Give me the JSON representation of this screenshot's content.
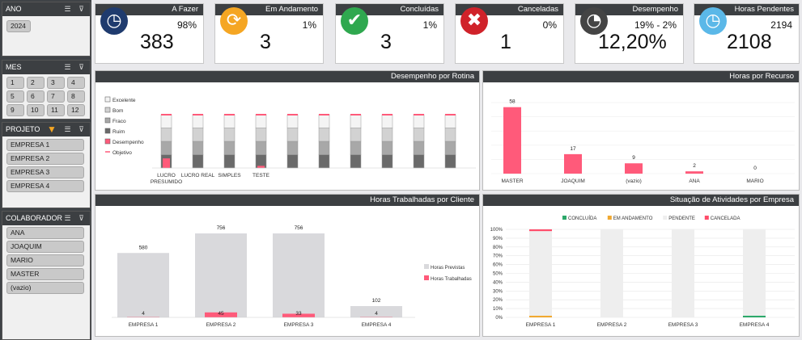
{
  "slicers": {
    "ano": {
      "title": "ANO",
      "items": [
        "2024"
      ]
    },
    "mes": {
      "title": "MES",
      "items": [
        "1",
        "2",
        "3",
        "4",
        "5",
        "6",
        "7",
        "8",
        "9",
        "10",
        "11",
        "12"
      ]
    },
    "projeto": {
      "title": "PROJETO",
      "items": [
        "EMPRESA 1",
        "EMPRESA 2",
        "EMPRESA 3",
        "EMPRESA 4"
      ]
    },
    "colaborador": {
      "title": "COLABORADOR",
      "items": [
        "ANA",
        "JOAQUIM",
        "MARIO",
        "MASTER",
        "(vazio)"
      ]
    }
  },
  "cards": [
    {
      "title": "A Fazer",
      "pct": "98%",
      "value": "383",
      "icon": "clock-alert-icon",
      "color": "#1f3b6e"
    },
    {
      "title": "Em Andamento",
      "pct": "1%",
      "value": "3",
      "icon": "refresh-icon",
      "color": "#f5a623"
    },
    {
      "title": "Concluídas",
      "pct": "1%",
      "value": "3",
      "icon": "check-icon",
      "color": "#2fa84f"
    },
    {
      "title": "Canceladas",
      "pct": "0%",
      "value": "1",
      "icon": "cancel-icon",
      "color": "#d0222a"
    },
    {
      "title": "Desempenho",
      "pct": "19% - 2%",
      "value": "12,20%",
      "icon": "gauge-icon",
      "color": "#444444"
    },
    {
      "title": "Horas Pendentes",
      "pct": "2194",
      "value": "2108",
      "icon": "wall-clock-icon",
      "color": "#5bb8e8"
    }
  ],
  "panels": {
    "rotina": "Desempenho por Rotina",
    "recurso": "Horas por Recurso",
    "cliente": "Horas Trabalhadas por Cliente",
    "situacao": "Situação de Atividades por Empresa"
  },
  "chart_data": [
    {
      "type": "bar",
      "title": "Desempenho por Rotina",
      "categories": [
        "LUCRO PRESUMIDO",
        "LUCRO REAL",
        "SIMPLES",
        "TESTE",
        "",
        "",
        "",
        "",
        "",
        ""
      ],
      "legend": [
        "Excelente",
        "Bom",
        "Fraco",
        "Ruim",
        "Desempenho",
        "Objetivo"
      ],
      "series": [
        {
          "name": "Ruim",
          "values": [
            0.25,
            0.25,
            0.25,
            0.25,
            0.25,
            0.25,
            0.25,
            0.25,
            0.25,
            0.25
          ]
        },
        {
          "name": "Fraco",
          "values": [
            0.25,
            0.25,
            0.25,
            0.25,
            0.25,
            0.25,
            0.25,
            0.25,
            0.25,
            0.25
          ]
        },
        {
          "name": "Bom",
          "values": [
            0.25,
            0.25,
            0.25,
            0.25,
            0.25,
            0.25,
            0.25,
            0.25,
            0.25,
            0.25
          ]
        },
        {
          "name": "Excelente",
          "values": [
            0.25,
            0.25,
            0.25,
            0.25,
            0.25,
            0.25,
            0.25,
            0.25,
            0.25,
            0.25
          ]
        },
        {
          "name": "Desempenho",
          "values": [
            0.18,
            0,
            0,
            0.04,
            0,
            0,
            0,
            0,
            0,
            0
          ]
        },
        {
          "name": "Objetivo",
          "values": [
            1,
            1,
            1,
            1,
            1,
            1,
            1,
            1,
            1,
            1
          ]
        }
      ],
      "colors": {
        "Ruim": "#6a6a6a",
        "Fraco": "#a8a8a8",
        "Bom": "#d2d2d2",
        "Excelente": "#f4f4f4",
        "Desempenho": "#ff5a7a",
        "Objetivo": "#ff5a7a"
      }
    },
    {
      "type": "bar",
      "title": "Horas por Recurso",
      "categories": [
        "MASTER",
        "JOAQUIM",
        "(vazio)",
        "ANA",
        "MARIO"
      ],
      "values": [
        58,
        17,
        9,
        2,
        0
      ],
      "color": "#ff5a7a",
      "ylim": [
        0,
        62
      ]
    },
    {
      "type": "bar",
      "title": "Horas Trabalhadas por Cliente",
      "categories": [
        "EMPRESA 1",
        "EMPRESA 2",
        "EMPRESA 3",
        "EMPRESA 4"
      ],
      "series": [
        {
          "name": "Horas Previstas",
          "values": [
            580,
            756,
            756,
            102
          ],
          "color": "#d9d9dc"
        },
        {
          "name": "Horas Trabalhadas",
          "values": [
            4,
            45,
            33,
            4
          ],
          "color": "#ff5a7a"
        }
      ],
      "ylim": [
        0,
        800
      ]
    },
    {
      "type": "bar",
      "title": "Situação de Atividades por Empresa",
      "categories": [
        "EMPRESA 1",
        "EMPRESA 2",
        "EMPRESA 3",
        "EMPRESA 4"
      ],
      "yticks": [
        "0%",
        "10%",
        "20%",
        "30%",
        "40%",
        "50%",
        "60%",
        "70%",
        "80%",
        "90%",
        "100%"
      ],
      "series": [
        {
          "name": "CONCLUÍDA",
          "values": [
            0,
            0,
            0,
            0.02
          ],
          "color": "#2ca86a"
        },
        {
          "name": "EM ANDAMENTO",
          "values": [
            0.02,
            0,
            0,
            0
          ],
          "color": "#f0a830"
        },
        {
          "name": "PENDENTE",
          "values": [
            0.96,
            1,
            1,
            0.98
          ],
          "color": "#eeeeee"
        },
        {
          "name": "CANCELADA",
          "values": [
            0.02,
            0,
            0,
            0
          ],
          "color": "#ff4d6a"
        }
      ]
    }
  ]
}
